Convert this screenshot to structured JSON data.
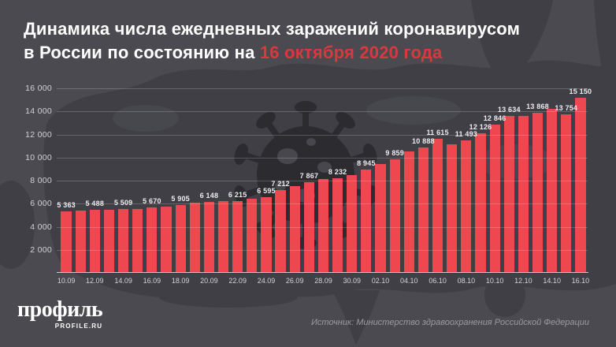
{
  "title": {
    "line1": "Динамика числа ежедневных заражений коронавирусом",
    "line2_plain": "в России по состоянию на ",
    "line2_accent": "16 октября 2020 года"
  },
  "footer": {
    "logo": "профиль",
    "logo_domain": "PROFILE.RU",
    "source": "Источник: Министерство здравоохранения Российской Федерации"
  },
  "colors": {
    "background": "#4a4a50",
    "map_silhouette": "#3f3f45",
    "virus_watermark": "#2b2b30",
    "bar": "#ee4750",
    "accent_red": "#d8393f",
    "grid_line": "rgba(255,255,255,0.20)",
    "axis_text": "#d2d2d6",
    "value_text": "#ececee",
    "source_text": "#9b9ba0"
  },
  "chart_data": {
    "type": "bar",
    "title": "Динамика числа ежедневных заражений коронавирусом в России по состоянию на 16 октября 2020 года",
    "xlabel": "",
    "ylabel": "",
    "ylim": [
      0,
      16000
    ],
    "grid": true,
    "yticks": [
      2000,
      4000,
      6000,
      8000,
      10000,
      12000,
      14000,
      16000
    ],
    "ytick_labels": [
      "2 000",
      "4 000",
      "6 000",
      "8 000",
      "10 000",
      "12 000",
      "14 000",
      "16 000"
    ],
    "x_label_every": 2,
    "bars": [
      {
        "date": "10.09",
        "value": 5363,
        "labeled": true
      },
      {
        "date": "11.09",
        "value": 5420,
        "labeled": false
      },
      {
        "date": "12.09",
        "value": 5488,
        "labeled": true
      },
      {
        "date": "13.09",
        "value": 5450,
        "labeled": false
      },
      {
        "date": "14.09",
        "value": 5509,
        "labeled": true
      },
      {
        "date": "15.09",
        "value": 5530,
        "labeled": false
      },
      {
        "date": "16.09",
        "value": 5670,
        "labeled": true
      },
      {
        "date": "17.09",
        "value": 5760,
        "labeled": false
      },
      {
        "date": "18.09",
        "value": 5905,
        "labeled": true
      },
      {
        "date": "19.09",
        "value": 6065,
        "labeled": false
      },
      {
        "date": "20.09",
        "value": 6148,
        "labeled": true
      },
      {
        "date": "21.09",
        "value": 6200,
        "labeled": false
      },
      {
        "date": "22.09",
        "value": 6215,
        "labeled": true
      },
      {
        "date": "23.09",
        "value": 6430,
        "labeled": false
      },
      {
        "date": "24.09",
        "value": 6595,
        "labeled": true
      },
      {
        "date": "25.09",
        "value": 7212,
        "labeled": true
      },
      {
        "date": "26.09",
        "value": 7520,
        "labeled": false
      },
      {
        "date": "27.09",
        "value": 7867,
        "labeled": true
      },
      {
        "date": "28.09",
        "value": 8135,
        "labeled": false
      },
      {
        "date": "29.09",
        "value": 8232,
        "labeled": true
      },
      {
        "date": "30.09",
        "value": 8480,
        "labeled": false
      },
      {
        "date": "01.10",
        "value": 8945,
        "labeled": true
      },
      {
        "date": "02.10",
        "value": 9410,
        "labeled": false
      },
      {
        "date": "03.10",
        "value": 9859,
        "labeled": true
      },
      {
        "date": "04.10",
        "value": 10500,
        "labeled": false
      },
      {
        "date": "05.10",
        "value": 10888,
        "labeled": true
      },
      {
        "date": "06.10",
        "value": 11615,
        "labeled": true
      },
      {
        "date": "07.10",
        "value": 11115,
        "labeled": false
      },
      {
        "date": "08.10",
        "value": 11493,
        "labeled": true
      },
      {
        "date": "09.10",
        "value": 12126,
        "labeled": true
      },
      {
        "date": "10.10",
        "value": 12846,
        "labeled": true
      },
      {
        "date": "11.10",
        "value": 13634,
        "labeled": true
      },
      {
        "date": "12.10",
        "value": 13590,
        "labeled": false
      },
      {
        "date": "13.10",
        "value": 13868,
        "labeled": true
      },
      {
        "date": "14.10",
        "value": 14230,
        "labeled": false
      },
      {
        "date": "15.10",
        "value": 13754,
        "labeled": true
      },
      {
        "date": "16.10",
        "value": 15150,
        "labeled": true
      }
    ]
  }
}
